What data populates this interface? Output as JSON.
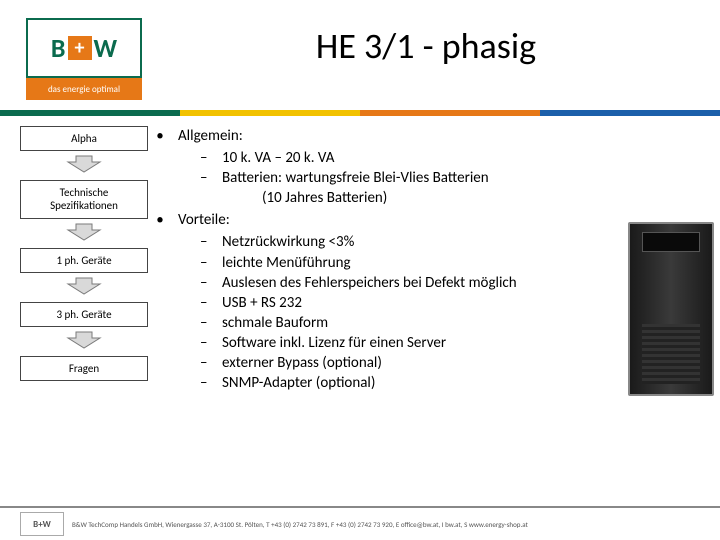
{
  "logo": {
    "letter_b": "B",
    "plus": "+",
    "letter_w": "W",
    "tagline": "das energie optimal",
    "border_color": "#0b6b4e",
    "plus_bg": "#e67817",
    "tagline_bg": "#e67817"
  },
  "title": "HE 3/1 - phasig",
  "color_bar": [
    "#0b6b4e",
    "#f2c200",
    "#e67817",
    "#1b5faa"
  ],
  "sidebar": {
    "items": [
      {
        "label": "Alpha"
      },
      {
        "label": "Technische Spezifikationen"
      },
      {
        "label": "1 ph. Geräte"
      },
      {
        "label": "3 ph. Geräte"
      },
      {
        "label": "Fragen"
      }
    ],
    "arrow_fill": "#d9d9d9",
    "arrow_stroke": "#7a7a7a"
  },
  "content": {
    "section1": {
      "heading": "Allgemein:",
      "items": [
        "10 k. VA – 20 k. VA",
        "Batterien:   wartungsfreie Blei-Vlies Batterien"
      ],
      "cont": "(10 Jahres Batterien)"
    },
    "section2": {
      "heading": "Vorteile:",
      "items": [
        "Netzrückwirkung <3%",
        "leichte Menüführung",
        "Auslesen des Fehlerspeichers bei Defekt möglich",
        "USB + RS 232",
        "schmale Bauform",
        "Software inkl. Lizenz für einen Server",
        "externer Bypass (optional)",
        "SNMP-Adapter (optional)"
      ]
    }
  },
  "footer": {
    "logo_text": "B+W",
    "text": "B&W TechComp Handels GmbH,  Wienergasse 37, A-3100 St. Pölten,  T +43 (0) 2742 73 891,  F +43 (0) 2742 73 920,  E office@bw.at,  I bw.at,  S www.energy-shop.at"
  }
}
